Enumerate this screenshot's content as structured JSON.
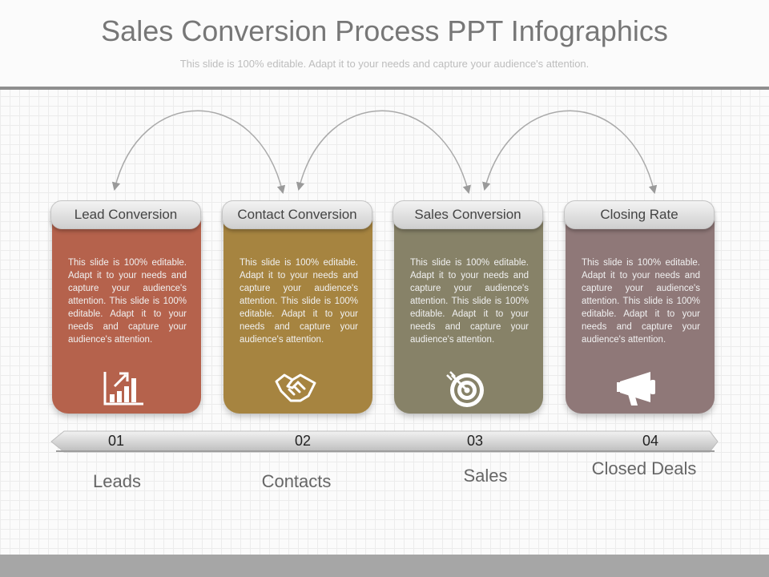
{
  "slide": {
    "title": "Sales Conversion Process PPT Infographics",
    "subtitle": "This slide is 100% editable. Adapt it to your needs and capture your audience's attention."
  },
  "cards": [
    {
      "label": "Lead Conversion",
      "body": "This slide is 100% editable. Adapt it to your needs and capture your audience's attention. This slide is 100% editable. Adapt it to your needs and capture your audience's attention.",
      "icon": "bar-chart-icon",
      "color": "#b5624c"
    },
    {
      "label": "Contact Conversion",
      "body": "This slide is 100% editable. Adapt it to your needs and capture your audience's attention. This slide is 100% editable. Adapt it to your needs and capture your audience's attention.",
      "icon": "handshake-icon",
      "color": "#a68440"
    },
    {
      "label": "Sales Conversion",
      "body": "This slide is 100% editable. Adapt it to your needs and capture your audience's attention. This slide is 100% editable. Adapt it to your needs and capture your audience's attention.",
      "icon": "target-icon",
      "color": "#878268"
    },
    {
      "label": "Closing Rate",
      "body": "This slide is 100% editable. Adapt it to your needs and capture your audience's attention. This slide is 100% editable. Adapt it to your needs and capture your audience's attention.",
      "icon": "megaphone-icon",
      "color": "#8f7878"
    }
  ],
  "timeline": {
    "numbers": [
      "01",
      "02",
      "03",
      "04"
    ]
  },
  "stages": [
    "Leads",
    "Contacts",
    "Sales",
    "Closed Deals"
  ]
}
